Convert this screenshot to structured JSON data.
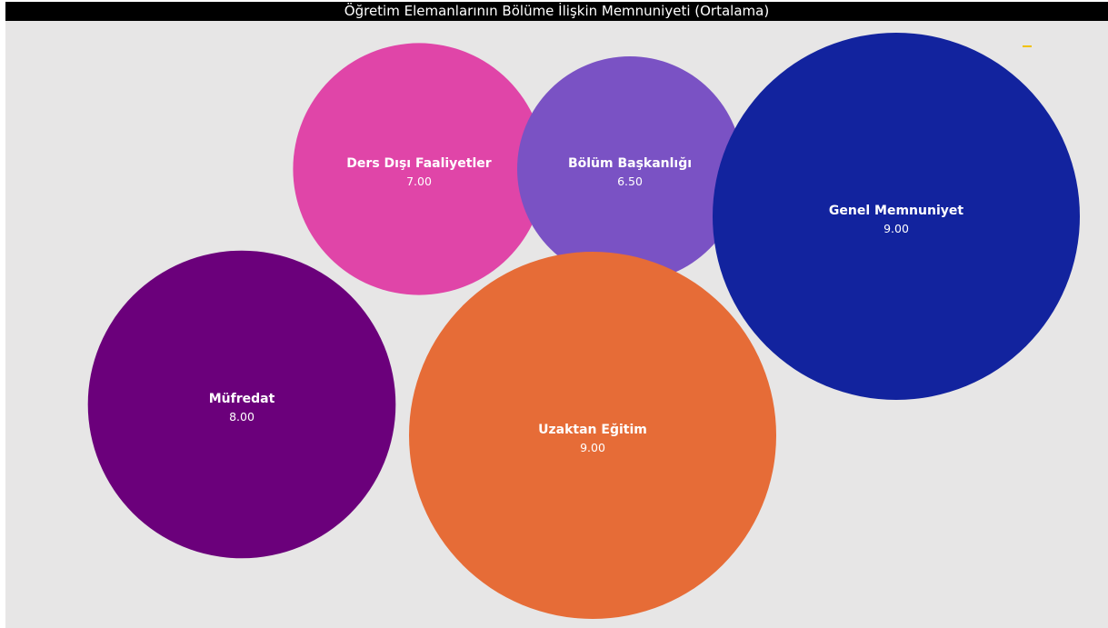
{
  "title": "Öğretim Elemanlarının Bölüme İlişkin Memnuniyeti (Ortalama)",
  "accent_color": "#f2c200",
  "chart_data": {
    "type": "bubble",
    "title": "Öğretim Elemanlarının Bölüme İlişkin Memnuniyeti (Ortalama)",
    "series": [
      {
        "name": "Ders Dışı Faaliyetler",
        "value": 7.0,
        "label": "7.00",
        "color": "#e045a8"
      },
      {
        "name": "Bölüm Başkanlığı",
        "value": 6.5,
        "label": "6.50",
        "color": "#7a52c4"
      },
      {
        "name": "Genel Memnuniyet",
        "value": 9.0,
        "label": "9.00",
        "color": "#12239e"
      },
      {
        "name": "Müfredat",
        "value": 8.0,
        "label": "8.00",
        "color": "#6b007b"
      },
      {
        "name": "Uzaktan Eğitim",
        "value": 9.0,
        "label": "9.00",
        "color": "#e66c37"
      }
    ],
    "legend": "none",
    "grid": false
  }
}
